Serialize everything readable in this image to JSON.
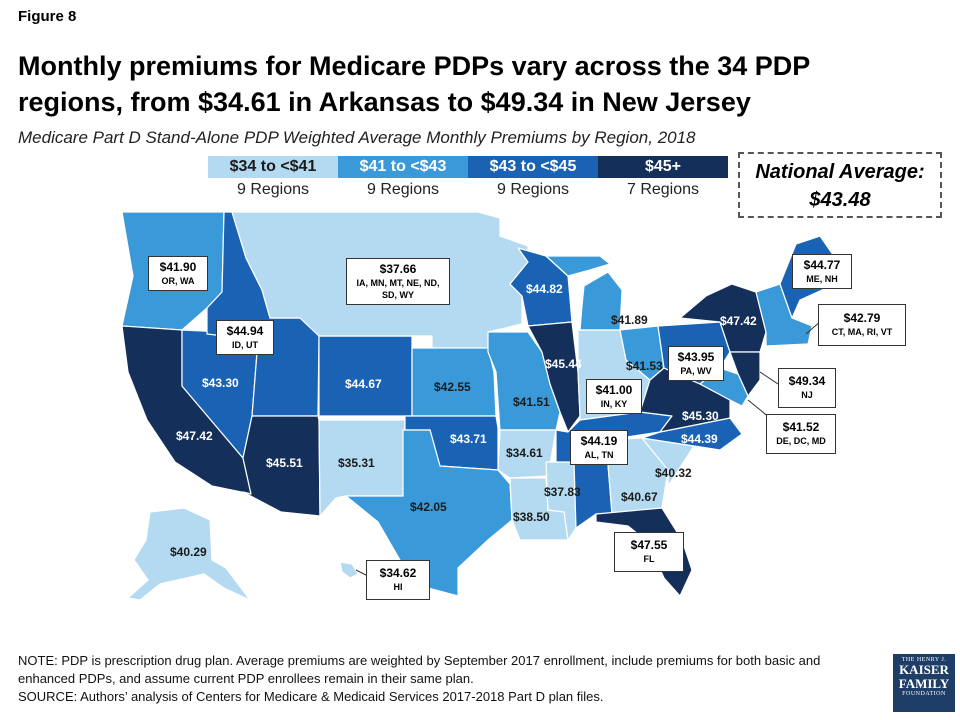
{
  "figure_label": "Figure 8",
  "headline": "Monthly premiums for Medicare PDPs vary across the 34 PDP regions, from $34.61 in Arkansas to $49.34 in New Jersey",
  "subtitle": "Medicare Part D Stand-Alone PDP Weighted Average Monthly Premiums by Region, 2018",
  "legend": [
    {
      "label": "$34 to <$41",
      "count": "9 Regions",
      "color": "#b3daf1",
      "text_color": "#1b1b1b"
    },
    {
      "label": "$41 to <$43",
      "count": "9 Regions",
      "color": "#3a9ad9",
      "text_color": "#ffffff"
    },
    {
      "label": "$43 to <$45",
      "count": "9 Regions",
      "color": "#1a63b4",
      "text_color": "#ffffff"
    },
    {
      "label": "$45+",
      "count": "7 Regions",
      "color": "#14305a",
      "text_color": "#ffffff"
    }
  ],
  "national_average": {
    "label": "National Average:",
    "value": "$43.48"
  },
  "map_labels": [
    {
      "id": "az",
      "value": "$45.51",
      "tone": "dark"
    },
    {
      "id": "nm",
      "value": "$35.31",
      "tone": "light"
    },
    {
      "id": "nv",
      "value": "$43.30",
      "tone": "dark"
    },
    {
      "id": "ca",
      "value": "$47.42",
      "tone": "dark"
    },
    {
      "id": "co",
      "value": "$44.67",
      "tone": "dark"
    },
    {
      "id": "ks",
      "value": "$42.55",
      "tone": "light"
    },
    {
      "id": "mo",
      "value": "$41.51",
      "tone": "light"
    },
    {
      "id": "ok",
      "value": "$43.71",
      "tone": "dark"
    },
    {
      "id": "tx",
      "value": "$42.05",
      "tone": "light"
    },
    {
      "id": "ar",
      "value": "$34.61",
      "tone": "light"
    },
    {
      "id": "ms",
      "value": "$37.83",
      "tone": "light"
    },
    {
      "id": "la",
      "value": "$38.50",
      "tone": "light"
    },
    {
      "id": "ga",
      "value": "$40.67",
      "tone": "light"
    },
    {
      "id": "sc",
      "value": "$40.32",
      "tone": "light"
    },
    {
      "id": "nc",
      "value": "$44.39",
      "tone": "dark"
    },
    {
      "id": "va",
      "value": "$45.30",
      "tone": "dark"
    },
    {
      "id": "il",
      "value": "$45.44",
      "tone": "dark"
    },
    {
      "id": "wi",
      "value": "$44.82",
      "tone": "dark"
    },
    {
      "id": "mi",
      "value": "$41.89",
      "tone": "light"
    },
    {
      "id": "oh",
      "value": "$41.53",
      "tone": "light"
    },
    {
      "id": "ny",
      "value": "$47.42",
      "tone": "dark"
    },
    {
      "id": "ak",
      "value": "$40.29",
      "tone": "light"
    }
  ],
  "callouts": [
    {
      "id": "orwa",
      "value": "$41.90",
      "regions": "OR, WA"
    },
    {
      "id": "north",
      "value": "$37.66",
      "regions": "IA, MN, MT, NE, ND, SD, WY"
    },
    {
      "id": "idut",
      "value": "$44.94",
      "regions": "ID, UT"
    },
    {
      "id": "pawv",
      "value": "$43.95",
      "regions": "PA, WV"
    },
    {
      "id": "inky",
      "value": "$41.00",
      "regions": "IN, KY"
    },
    {
      "id": "altn",
      "value": "$44.19",
      "regions": "AL, TN"
    },
    {
      "id": "fl",
      "value": "$47.55",
      "regions": "FL"
    },
    {
      "id": "hi",
      "value": "$34.62",
      "regions": "HI"
    },
    {
      "id": "menh",
      "value": "$44.77",
      "regions": "ME, NH"
    },
    {
      "id": "ne",
      "value": "$42.79",
      "regions": "CT, MA, RI, VT"
    },
    {
      "id": "nj",
      "value": "$49.34",
      "regions": "NJ"
    },
    {
      "id": "dedc",
      "value": "$41.52",
      "regions": "DE, DC, MD"
    }
  ],
  "note_lines": [
    "NOTE: PDP is prescription drug plan. Average premiums are weighted by September 2017 enrollment, include premiums for both basic and enhanced PDPs, and assume current PDP enrollees remain in their same plan.",
    "SOURCE: Authors’ analysis of Centers for Medicare & Medicaid Services 2017-2018 Part D plan files."
  ],
  "logo": {
    "line1": "THE HENRY J.",
    "line2": "KAISER",
    "line3": "FAMILY",
    "line4": "FOUNDATION"
  }
}
